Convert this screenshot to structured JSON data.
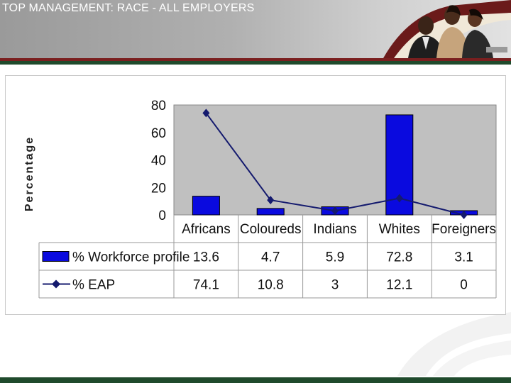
{
  "header": {
    "title": "TOP MANAGEMENT: RACE - ALL EMPLOYERS"
  },
  "colors": {
    "bar": "#0a0adf",
    "line": "#141a6e",
    "plot_bg": "#c0c0c0",
    "header_green": "#1f4a2c",
    "header_red": "#7a1f1f"
  },
  "chart_data": {
    "type": "bar",
    "categories": [
      "Africans",
      "Coloureds",
      "Indians",
      "Whites",
      "Foreigners"
    ],
    "series": [
      {
        "name": "% Workforce profile",
        "type": "bar",
        "values": [
          13.6,
          4.7,
          5.9,
          72.8,
          3.1
        ]
      },
      {
        "name": "% EAP",
        "type": "line",
        "values": [
          74.1,
          10.8,
          3,
          12.1,
          0
        ]
      }
    ],
    "ylabel": "Percentage",
    "xlabel": "",
    "ylim": [
      0,
      80
    ],
    "yticks": [
      0,
      20,
      40,
      60,
      80
    ],
    "grid": false,
    "legend": "data-table-left"
  }
}
